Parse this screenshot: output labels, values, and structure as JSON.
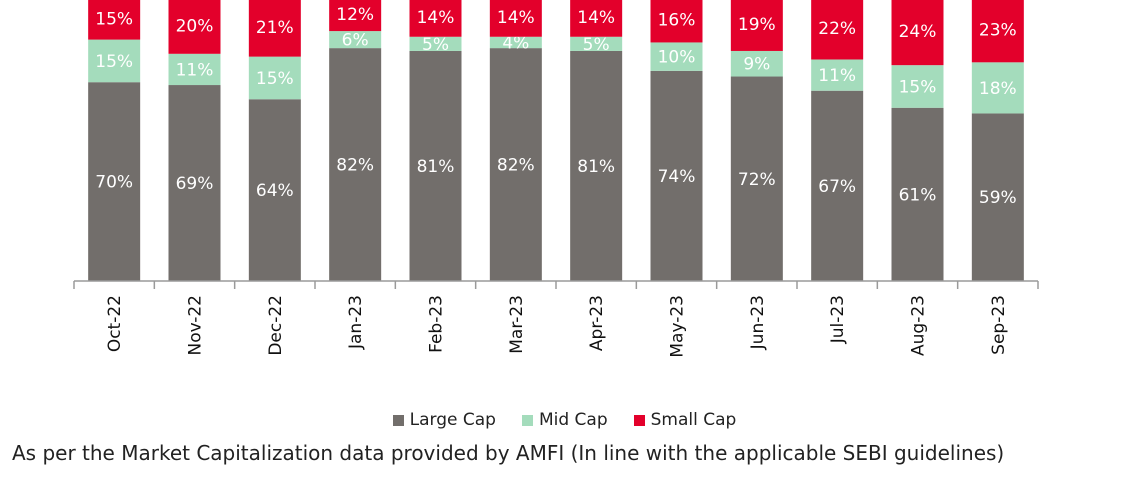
{
  "chart_data": {
    "type": "bar",
    "stacked": true,
    "categories": [
      "Oct-22",
      "Nov-22",
      "Dec-22",
      "Jan-23",
      "Feb-23",
      "Mar-23",
      "Apr-23",
      "May-23",
      "Jun-23",
      "Jul-23",
      "Aug-23",
      "Sep-23"
    ],
    "series": [
      {
        "name": "Large Cap",
        "color": "#726e6b",
        "values": [
          70,
          69,
          64,
          82,
          81,
          82,
          81,
          74,
          72,
          67,
          61,
          59
        ]
      },
      {
        "name": "Mid Cap",
        "color": "#a4dcbc",
        "values": [
          15,
          11,
          15,
          6,
          5,
          4,
          5,
          10,
          9,
          11,
          15,
          18
        ]
      },
      {
        "name": "Small Cap",
        "color": "#e3002b",
        "values": [
          15,
          20,
          21,
          12,
          14,
          14,
          14,
          16,
          19,
          22,
          24,
          23
        ]
      }
    ],
    "value_labels": [
      [
        "70%",
        "69%",
        "64%",
        "82%",
        "81%",
        "82%",
        "81%",
        "74%",
        "72%",
        "67%",
        "61%",
        "59%"
      ],
      [
        "15%",
        "11%",
        "15%",
        "6%",
        "5%",
        "4%",
        "5%",
        "10%",
        "9%",
        "11%",
        "15%",
        "18%"
      ],
      [
        "15%",
        "20%",
        "21%",
        "12%",
        "14%",
        "14%",
        "14%",
        "16%",
        "19%",
        "22%",
        "24%",
        "23%"
      ]
    ],
    "legend_position": "bottom",
    "grid": false
  },
  "footnote": "As per the Market Capitalization data provided by AMFI (In line with the applicable SEBI guidelines)"
}
